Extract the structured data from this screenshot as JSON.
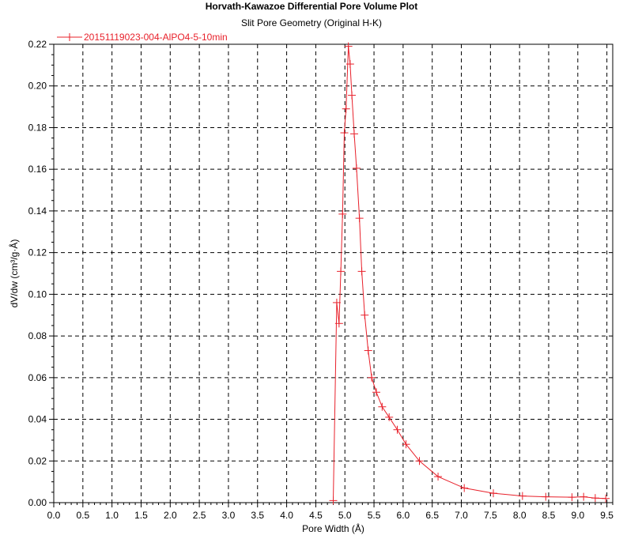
{
  "chart_data": {
    "type": "line",
    "title": "Horvath-Kawazoe Differential Pore Volume Plot",
    "subtitle": "Slit Pore Geometry (Original H-K)",
    "xlabel": "Pore Width (Å)",
    "ylabel": "dV/dw (cm³/g·Å)",
    "xlim": [
      0.0,
      9.6
    ],
    "ylim": [
      0.0,
      0.22
    ],
    "x_major_ticks": [
      "0.0",
      "0.5",
      "1.0",
      "1.5",
      "2.0",
      "2.5",
      "3.0",
      "3.5",
      "4.0",
      "4.5",
      "5.0",
      "5.5",
      "6.0",
      "6.5",
      "7.0",
      "7.5",
      "8.0",
      "8.5",
      "9.0",
      "9.5"
    ],
    "y_major_ticks": [
      "0.00",
      "0.02",
      "0.04",
      "0.06",
      "0.08",
      "0.10",
      "0.12",
      "0.14",
      "0.16",
      "0.18",
      "0.20",
      "0.22"
    ],
    "grid": true,
    "legend_position": "top-left",
    "series": [
      {
        "name": "20151119023-004-AlPO4-5-10min",
        "color": "#e8202a",
        "marker": "plus",
        "x": [
          4.8,
          4.86,
          4.9,
          4.93,
          4.96,
          4.99,
          5.02,
          5.06,
          5.09,
          5.12,
          5.16,
          5.2,
          5.25,
          5.29,
          5.34,
          5.4,
          5.46,
          5.54,
          5.64,
          5.76,
          5.9,
          6.05,
          6.28,
          6.6,
          7.05,
          7.55,
          8.05,
          8.45,
          8.9,
          9.1,
          9.3,
          9.48
        ],
        "y": [
          0.001,
          0.096,
          0.086,
          0.111,
          0.1385,
          0.1775,
          0.189,
          0.219,
          0.2105,
          0.1955,
          0.177,
          0.1605,
          0.1365,
          0.111,
          0.09,
          0.073,
          0.06,
          0.053,
          0.046,
          0.041,
          0.035,
          0.028,
          0.02,
          0.0125,
          0.007,
          0.0045,
          0.0032,
          0.0028,
          0.0026,
          0.0028,
          0.0022,
          0.002
        ]
      }
    ]
  }
}
